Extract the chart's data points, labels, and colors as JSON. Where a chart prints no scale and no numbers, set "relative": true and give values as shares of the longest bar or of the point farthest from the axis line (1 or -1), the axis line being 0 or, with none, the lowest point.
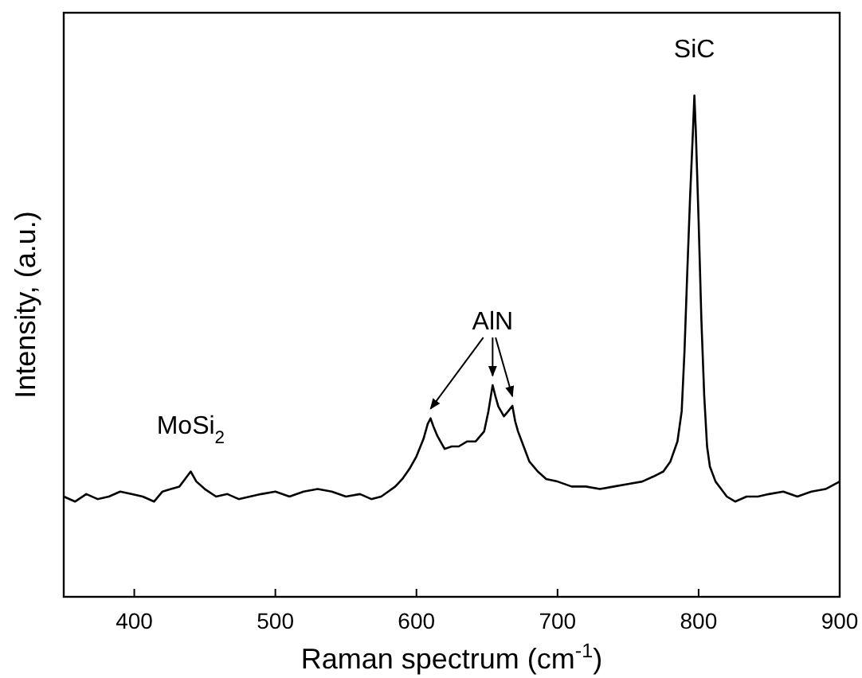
{
  "chart_data": {
    "type": "line",
    "relative": true,
    "xlabel": "Raman spectrum (cm$^{-1}$)",
    "ylabel": "Intensity, (a.u.)",
    "xlim": [
      350,
      900
    ],
    "xticks": [
      400,
      500,
      600,
      700,
      800,
      900
    ],
    "grid": false,
    "marker": "none",
    "line_style": "solid",
    "series": [
      {
        "color": "#000000",
        "x": [
          350,
          358,
          366,
          374,
          382,
          390,
          398,
          406,
          414,
          420,
          426,
          432,
          436,
          440,
          444,
          450,
          458,
          466,
          474,
          482,
          490,
          500,
          510,
          520,
          530,
          540,
          550,
          560,
          568,
          575,
          580,
          585,
          590,
          595,
          600,
          605,
          608,
          610,
          612,
          615,
          620,
          625,
          630,
          636,
          642,
          648,
          651,
          654,
          656,
          658,
          662,
          665,
          668,
          670,
          672,
          676,
          680,
          686,
          692,
          700,
          710,
          720,
          730,
          740,
          750,
          760,
          768,
          775,
          780,
          785,
          788,
          790,
          792,
          794,
          796,
          797,
          798,
          800,
          802,
          804,
          806,
          808,
          812,
          816,
          820,
          826,
          834,
          842,
          850,
          860,
          870,
          880,
          890,
          900
        ],
        "values": [
          0.2,
          0.19,
          0.205,
          0.195,
          0.2,
          0.21,
          0.205,
          0.2,
          0.19,
          0.21,
          0.215,
          0.22,
          0.235,
          0.25,
          0.23,
          0.215,
          0.2,
          0.205,
          0.195,
          0.2,
          0.205,
          0.21,
          0.2,
          0.21,
          0.215,
          0.21,
          0.2,
          0.205,
          0.195,
          0.2,
          0.21,
          0.22,
          0.235,
          0.255,
          0.28,
          0.315,
          0.345,
          0.356,
          0.34,
          0.32,
          0.295,
          0.3,
          0.3,
          0.31,
          0.31,
          0.33,
          0.37,
          0.422,
          0.4,
          0.38,
          0.36,
          0.37,
          0.381,
          0.35,
          0.33,
          0.3,
          0.27,
          0.25,
          0.235,
          0.23,
          0.22,
          0.22,
          0.215,
          0.22,
          0.225,
          0.23,
          0.24,
          0.25,
          0.27,
          0.31,
          0.37,
          0.49,
          0.65,
          0.8,
          0.93,
          1.0,
          0.93,
          0.75,
          0.55,
          0.4,
          0.3,
          0.26,
          0.23,
          0.215,
          0.2,
          0.19,
          0.2,
          0.2,
          0.205,
          0.21,
          0.2,
          0.21,
          0.215,
          0.23
        ]
      }
    ],
    "annotations": [
      {
        "text": "MoSi$_{2}$",
        "x": 440,
        "y": 0.25
      },
      {
        "text": "AlN",
        "x": 654,
        "y": 0.422
      },
      {
        "text": "SiC",
        "x": 797,
        "y": 1.0
      }
    ]
  }
}
